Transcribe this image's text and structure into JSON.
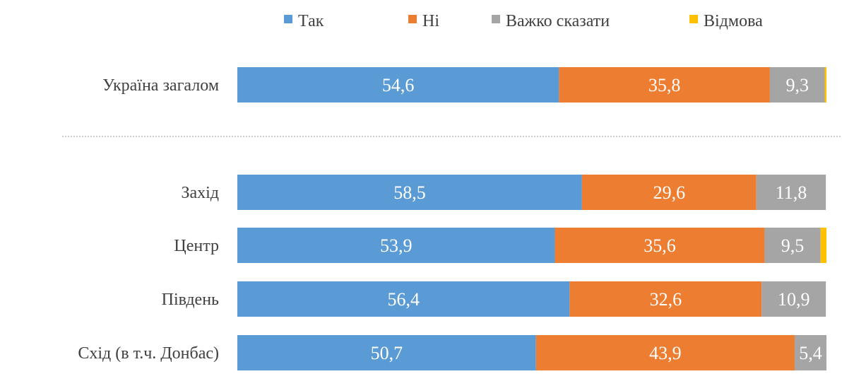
{
  "chart_data": {
    "type": "stacked-bar-horizontal",
    "categories": [
      "Україна загалом",
      "Захід",
      "Центр",
      "Південь",
      "Схід (в т.ч. Донбас)"
    ],
    "series": [
      {
        "name": "Так",
        "color": "#5B9BD5",
        "values": [
          54.6,
          58.5,
          53.9,
          56.4,
          50.7
        ],
        "labels": [
          "54,6",
          "58,5",
          "53,9",
          "56,4",
          "50,7"
        ]
      },
      {
        "name": "Ні",
        "color": "#ED7D31",
        "values": [
          35.8,
          29.6,
          35.6,
          32.6,
          43.9
        ],
        "labels": [
          "35,8",
          "29,6",
          "35,6",
          "32,6",
          "43,9"
        ]
      },
      {
        "name": "Важко сказати",
        "color": "#A5A5A5",
        "values": [
          9.3,
          11.8,
          9.5,
          10.9,
          5.4
        ],
        "labels": [
          "9,3",
          "11,8",
          "9,5",
          "10,9",
          "5,4"
        ]
      },
      {
        "name": "Відмова",
        "color": "#FFC000",
        "values": [
          0.3,
          0,
          1.0,
          0,
          0
        ],
        "labels": [
          "",
          "",
          "",
          "",
          ""
        ]
      }
    ],
    "xlim": [
      0,
      100
    ],
    "legend": "top",
    "grid": false,
    "separator_after_first": true
  }
}
